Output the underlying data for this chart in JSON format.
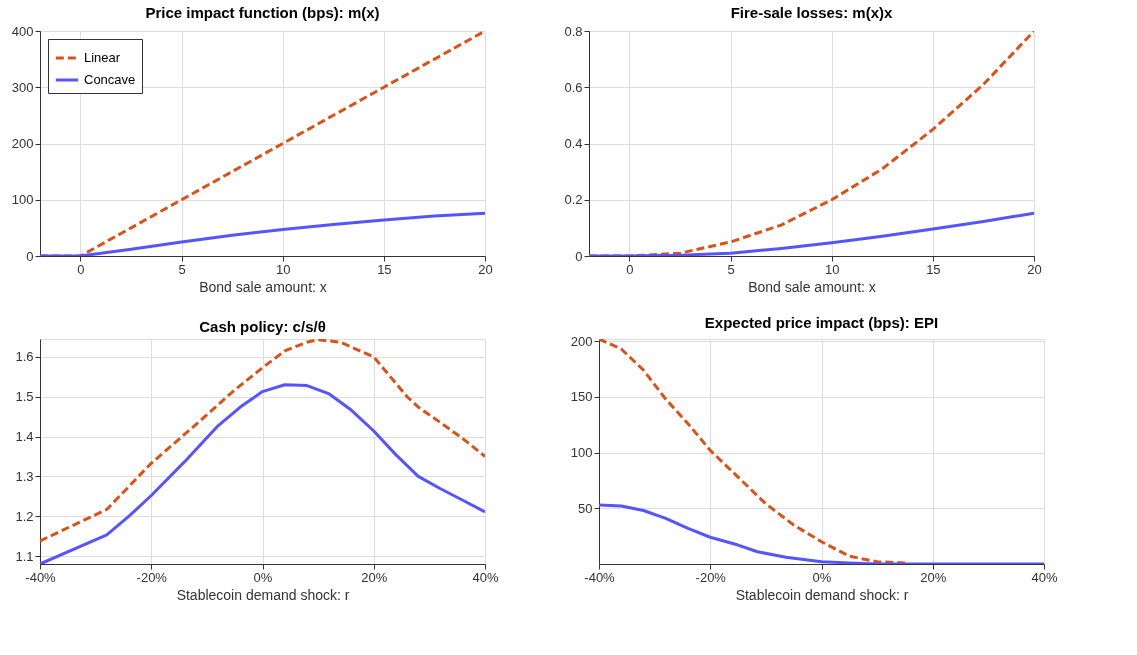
{
  "chart_data": [
    {
      "type": "line",
      "title": "Price impact function (bps): m(x)",
      "xlabel": "Bond sale amount: x",
      "xlim": [
        -2,
        20
      ],
      "xticks": [
        0,
        5,
        10,
        15,
        20
      ],
      "ylim": [
        0,
        400
      ],
      "yticks": [
        0,
        100,
        200,
        300,
        400
      ],
      "grid": true,
      "legend": "top left",
      "series": [
        {
          "name": "Linear",
          "color": "#d95319",
          "line_style": "dashed",
          "x": [
            -2,
            0,
            5,
            10,
            15,
            20
          ],
          "values": [
            0,
            0,
            100,
            200,
            300,
            400
          ]
        },
        {
          "name": "Concave",
          "color": "#5555ff",
          "line_style": "solid",
          "x": [
            -2,
            0,
            2.5,
            5,
            7.5,
            10,
            12.5,
            15,
            17.5,
            20
          ],
          "values": [
            0,
            0,
            12,
            25,
            37,
            47,
            56,
            64,
            71,
            76
          ]
        }
      ]
    },
    {
      "type": "line",
      "title": "Fire-sale losses: m(x)x",
      "xlabel": "Bond sale amount: x",
      "xlim": [
        -2,
        20
      ],
      "xticks": [
        0,
        5,
        10,
        15,
        20
      ],
      "ylim": [
        0,
        0.8
      ],
      "yticks": [
        0,
        0.2,
        0.4,
        0.6,
        0.8
      ],
      "grid": true,
      "series": [
        {
          "color": "#d95319",
          "line_style": "dashed",
          "x": [
            -2,
            0,
            2.5,
            5,
            7.5,
            10,
            12.5,
            15,
            17.5,
            20
          ],
          "values": [
            0,
            0,
            0.01,
            0.05,
            0.11,
            0.2,
            0.31,
            0.45,
            0.61,
            0.8
          ]
        },
        {
          "color": "#5555ff",
          "line_style": "solid",
          "x": [
            -2,
            0,
            2.5,
            5,
            7.5,
            10,
            12.5,
            15,
            17.5,
            20
          ],
          "values": [
            0,
            0,
            0.003,
            0.01,
            0.027,
            0.047,
            0.07,
            0.096,
            0.123,
            0.152
          ]
        }
      ]
    },
    {
      "type": "line",
      "title": "Cash policy: c/s/θ",
      "xlabel": "Stablecoin demand shock: r",
      "xlim": [
        -40,
        40
      ],
      "xticks": [
        {
          "value": -40,
          "label": "-40%"
        },
        {
          "value": -20,
          "label": "-20%"
        },
        {
          "value": 0,
          "label": "0%"
        },
        {
          "value": 20,
          "label": "20%"
        },
        {
          "value": 40,
          "label": "40%"
        }
      ],
      "ylim": [
        1.08,
        1.645
      ],
      "yticks": [
        1.1,
        1.2,
        1.3,
        1.4,
        1.5,
        1.6
      ],
      "grid": true,
      "series": [
        {
          "color": "#d95319",
          "line_style": "dashed",
          "x": [
            -40,
            -28,
            -20,
            -12,
            -5,
            0,
            4,
            8,
            10,
            14,
            20,
            26,
            28,
            32,
            36,
            40
          ],
          "values": [
            1.138,
            1.217,
            1.333,
            1.43,
            1.517,
            1.573,
            1.615,
            1.637,
            1.643,
            1.637,
            1.6,
            1.5,
            1.474,
            1.435,
            1.395,
            1.35
          ]
        },
        {
          "color": "#5555ff",
          "line_style": "solid",
          "x": [
            -40,
            -28,
            -24,
            -20,
            -14,
            -8,
            -4,
            0,
            4,
            8,
            12,
            16,
            20,
            24,
            28,
            32,
            36,
            40
          ],
          "values": [
            1.08,
            1.153,
            1.2,
            1.252,
            1.337,
            1.427,
            1.474,
            1.513,
            1.53,
            1.528,
            1.507,
            1.466,
            1.414,
            1.354,
            1.3,
            1.269,
            1.24,
            1.211
          ]
        }
      ]
    },
    {
      "type": "line",
      "title": "Expected price impact (bps): EPI",
      "xlabel": "Stablecoin demand shock: r",
      "xlim": [
        -40,
        40
      ],
      "xticks": [
        {
          "value": -40,
          "label": "-40%"
        },
        {
          "value": -20,
          "label": "-20%"
        },
        {
          "value": 0,
          "label": "0%"
        },
        {
          "value": 20,
          "label": "20%"
        },
        {
          "value": 40,
          "label": "40%"
        }
      ],
      "ylim": [
        0,
        202
      ],
      "yticks": [
        50,
        100,
        150,
        200
      ],
      "grid": true,
      "series": [
        {
          "color": "#d95319",
          "line_style": "dashed",
          "x": [
            -40,
            -36,
            -32,
            -28,
            -24,
            -20,
            -15,
            -10,
            -5,
            0,
            5,
            10,
            15
          ],
          "values": [
            202,
            193,
            174,
            148,
            126,
            102,
            78,
            54,
            35,
            20,
            7,
            2,
            1
          ]
        },
        {
          "color": "#5555ff",
          "line_style": "solid",
          "x": [
            -40,
            -36,
            -32,
            -28,
            -24,
            -20,
            -15,
            -11.5,
            -6.4,
            0,
            5,
            10,
            20,
            30,
            40
          ],
          "values": [
            53,
            52,
            48,
            41,
            32,
            24,
            17,
            11,
            6,
            2,
            1,
            0,
            0,
            0,
            0
          ]
        }
      ]
    }
  ]
}
